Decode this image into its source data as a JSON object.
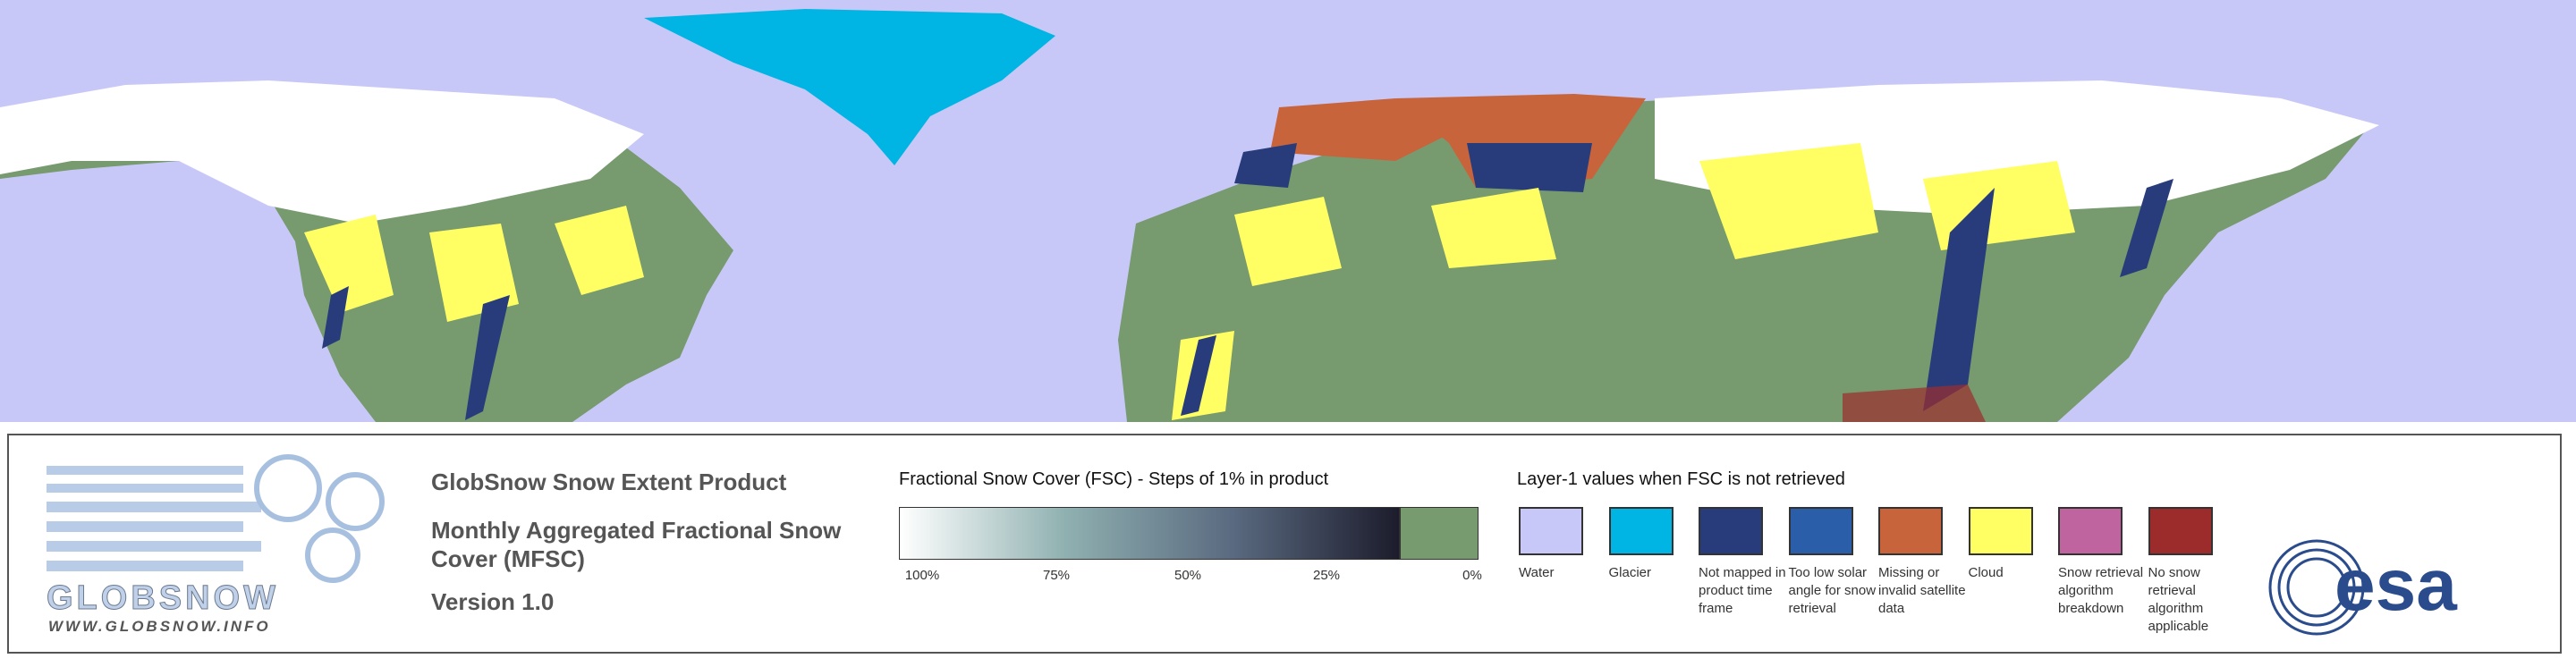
{
  "header": {
    "product": "GlobSnow Snow Extent Product",
    "subtitle": "Monthly Aggregated Fractional Snow Cover (MFSC)",
    "version": "Version 1.0"
  },
  "logo": {
    "name": "GLOBSNOW",
    "url": "WWW.GLOBSNOW.INFO",
    "agency": "esa"
  },
  "fsc_scale": {
    "title": "Fractional Snow Cover (FSC) - Steps of 1% in product",
    "colors": [
      "#ffffff",
      "#8fb0b0",
      "#5a6a80",
      "#1c1c2c"
    ],
    "zero_color": "#779a6e",
    "ticks": [
      "100%",
      "75%",
      "50%",
      "25%",
      "0%"
    ]
  },
  "layer1": {
    "title": "Layer-1 values when FSC is not retrieved",
    "items": [
      {
        "label": "Water",
        "color": "#c8c8f8"
      },
      {
        "label": "Glacier",
        "color": "#00b4e4"
      },
      {
        "label": "Not mapped in product time frame",
        "color": "#283c7c"
      },
      {
        "label": "Too low solar angle for snow retrieval",
        "color": "#2a5ea8"
      },
      {
        "label": "Missing or invalid satellite data",
        "color": "#c8643c"
      },
      {
        "label": "Cloud",
        "color": "#ffff64"
      },
      {
        "label": "Snow retrieval algorithm breakdown",
        "color": "#c064a0"
      },
      {
        "label": "No snow retrieval algorithm applicable",
        "color": "#9c2c2c"
      }
    ]
  }
}
